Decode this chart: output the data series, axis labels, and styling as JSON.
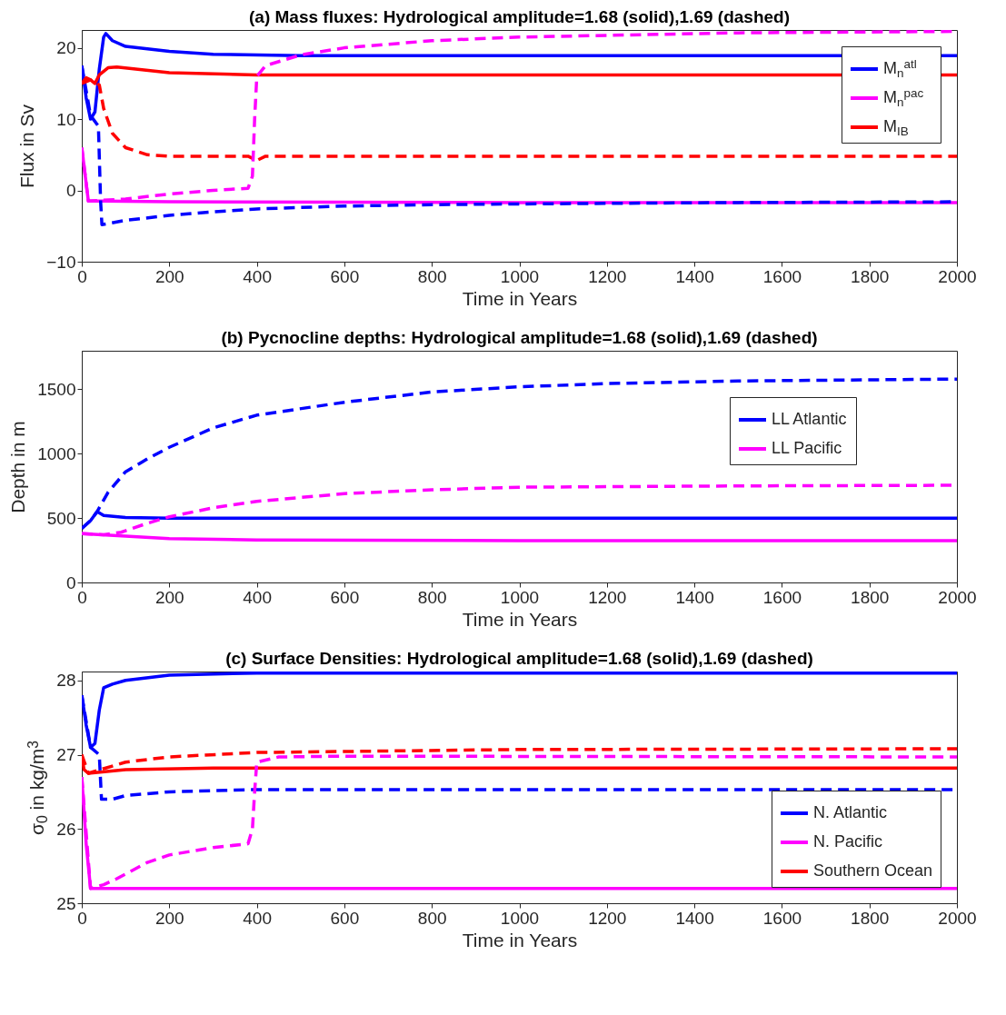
{
  "chart_data": [
    {
      "type": "line",
      "title": "(a) Mass fluxes: Hydrological amplitude=1.68 (solid),1.69 (dashed)",
      "xlabel": "Time in Years",
      "ylabel": "Flux in Sv",
      "xlim": [
        0,
        2000
      ],
      "xticks": [
        0,
        200,
        400,
        600,
        800,
        1000,
        1200,
        1400,
        1600,
        1800,
        2000
      ],
      "ylim": [
        -10,
        22.5
      ],
      "yticks": [
        -10,
        0,
        10,
        20
      ],
      "legend": "top right",
      "series": [
        {
          "name": "M$_{n}$$^{atl}$",
          "color": "#0000ff",
          "line_style": "solid",
          "x": [
            0,
            10,
            20,
            30,
            40,
            50,
            55,
            70,
            100,
            200,
            300,
            500,
            1000,
            2000
          ],
          "values": [
            17.5,
            13,
            10,
            11,
            17,
            21.5,
            22,
            21,
            20.2,
            19.5,
            19.1,
            18.9,
            18.9,
            18.9
          ]
        },
        {
          "name": "M$_{n}$$^{pac}$",
          "color": "#ff00ff",
          "line_style": "solid",
          "x": [
            0,
            10,
            15,
            50,
            200,
            1000,
            2000
          ],
          "values": [
            6,
            1,
            -1.5,
            -1.5,
            -1.6,
            -1.7,
            -1.7
          ]
        },
        {
          "name": "M$_{IB}$",
          "color": "#ff0000",
          "line_style": "solid",
          "x": [
            0,
            10,
            20,
            30,
            40,
            60,
            80,
            200,
            400,
            1000,
            2000
          ],
          "values": [
            15,
            15.8,
            15.5,
            15,
            16.2,
            17.2,
            17.3,
            16.5,
            16.2,
            16.2,
            16.2
          ]
        },
        {
          "color": "#0000ff",
          "line_style": "dashed",
          "x": [
            0,
            20,
            38,
            43,
            46,
            100,
            200,
            300,
            400,
            600,
            800,
            1000,
            1500,
            2000
          ],
          "values": [
            17.5,
            10.5,
            9,
            -1.5,
            -4.8,
            -4.2,
            -3.5,
            -3,
            -2.6,
            -2.2,
            -2,
            -1.9,
            -1.7,
            -1.6
          ]
        },
        {
          "color": "#ff0000",
          "line_style": "dashed",
          "x": [
            0,
            20,
            40,
            50,
            70,
            100,
            150,
            200,
            380,
            400,
            420,
            1000,
            2000
          ],
          "values": [
            15,
            15.5,
            14.8,
            11.5,
            8,
            6,
            5,
            4.8,
            4.8,
            4.2,
            4.8,
            4.8,
            4.8
          ]
        },
        {
          "color": "#ff00ff",
          "line_style": "dashed",
          "x": [
            0,
            15,
            100,
            200,
            300,
            380,
            390,
            395,
            400,
            420,
            500,
            600,
            800,
            1000,
            1500,
            2000
          ],
          "values": [
            6,
            -1.5,
            -1.2,
            -0.5,
            0,
            0.3,
            2,
            10,
            16,
            17.5,
            19,
            20,
            21,
            21.5,
            22.1,
            22.3
          ]
        }
      ]
    },
    {
      "type": "line",
      "title": "(b) Pycnocline depths: Hydrological amplitude=1.68 (solid),1.69 (dashed)",
      "xlabel": "Time in Years",
      "ylabel": "Depth in m",
      "xlim": [
        0,
        2000
      ],
      "xticks": [
        0,
        200,
        400,
        600,
        800,
        1000,
        1200,
        1400,
        1600,
        1800,
        2000
      ],
      "ylim": [
        0,
        1800
      ],
      "yticks": [
        0,
        500,
        1000,
        1500
      ],
      "legend": "right",
      "series": [
        {
          "name": "LL Atlantic",
          "color": "#0000ff",
          "line_style": "solid",
          "x": [
            0,
            20,
            35,
            50,
            100,
            200,
            1000,
            2000
          ],
          "values": [
            420,
            480,
            550,
            520,
            505,
            500,
            500,
            500
          ]
        },
        {
          "name": "LL Pacific",
          "color": "#ff00ff",
          "line_style": "solid",
          "x": [
            0,
            100,
            200,
            400,
            1000,
            2000
          ],
          "values": [
            380,
            360,
            340,
            330,
            325,
            325
          ]
        },
        {
          "color": "#0000ff",
          "line_style": "dashed",
          "x": [
            0,
            20,
            35,
            60,
            100,
            150,
            200,
            300,
            400,
            600,
            800,
            1000,
            1200,
            1500,
            2000
          ],
          "values": [
            420,
            480,
            550,
            700,
            860,
            960,
            1050,
            1200,
            1300,
            1400,
            1480,
            1520,
            1545,
            1565,
            1580
          ]
        },
        {
          "color": "#ff00ff",
          "line_style": "dashed",
          "x": [
            0,
            50,
            90,
            150,
            200,
            300,
            400,
            600,
            800,
            1000,
            1500,
            2000
          ],
          "values": [
            380,
            370,
            390,
            460,
            510,
            580,
            630,
            690,
            720,
            740,
            750,
            755
          ]
        }
      ]
    },
    {
      "type": "line",
      "title": "(c) Surface Densities: Hydrological amplitude=1.68 (solid),1.69 (dashed)",
      "xlabel": "Time in Years",
      "ylabel": "σ$_{0}$ in kg/m$^{3}$",
      "xlim": [
        0,
        2000
      ],
      "xticks": [
        0,
        200,
        400,
        600,
        800,
        1000,
        1200,
        1400,
        1600,
        1800,
        2000
      ],
      "ylim": [
        25,
        28.12
      ],
      "yticks": [
        25,
        26,
        27,
        28
      ],
      "legend": "bottom right",
      "series": [
        {
          "name": "N. Atlantic",
          "color": "#0000ff",
          "line_style": "solid",
          "x": [
            0,
            10,
            20,
            30,
            40,
            50,
            70,
            100,
            200,
            400,
            2000
          ],
          "values": [
            27.8,
            27.4,
            27.1,
            27.15,
            27.6,
            27.9,
            27.95,
            28,
            28.07,
            28.1,
            28.1
          ]
        },
        {
          "name": "N. Pacific",
          "color": "#ff00ff",
          "line_style": "solid",
          "x": [
            0,
            10,
            20,
            50,
            2000
          ],
          "values": [
            26.7,
            25.8,
            25.2,
            25.2,
            25.2
          ]
        },
        {
          "name": "Southern Ocean",
          "color": "#ff0000",
          "line_style": "solid",
          "x": [
            0,
            5,
            15,
            100,
            300,
            2000
          ],
          "values": [
            27,
            26.8,
            26.75,
            26.8,
            26.82,
            26.82
          ]
        },
        {
          "color": "#0000ff",
          "line_style": "dashed",
          "x": [
            0,
            20,
            40,
            45,
            70,
            100,
            200,
            400,
            2000
          ],
          "values": [
            27.8,
            27.1,
            27,
            26.4,
            26.4,
            26.45,
            26.5,
            26.53,
            26.53
          ]
        },
        {
          "color": "#ff0000",
          "line_style": "dashed",
          "x": [
            0,
            15,
            100,
            200,
            400,
            1000,
            2000
          ],
          "values": [
            27,
            26.75,
            26.9,
            26.97,
            27.03,
            27.07,
            27.08
          ]
        },
        {
          "color": "#ff00ff",
          "line_style": "dashed",
          "x": [
            0,
            20,
            50,
            80,
            150,
            200,
            300,
            380,
            390,
            395,
            400,
            450,
            600,
            2000
          ],
          "values": [
            26.7,
            25.2,
            25.25,
            25.33,
            25.55,
            25.65,
            25.75,
            25.8,
            26,
            26.5,
            26.9,
            26.97,
            26.98,
            26.97
          ]
        }
      ]
    }
  ]
}
